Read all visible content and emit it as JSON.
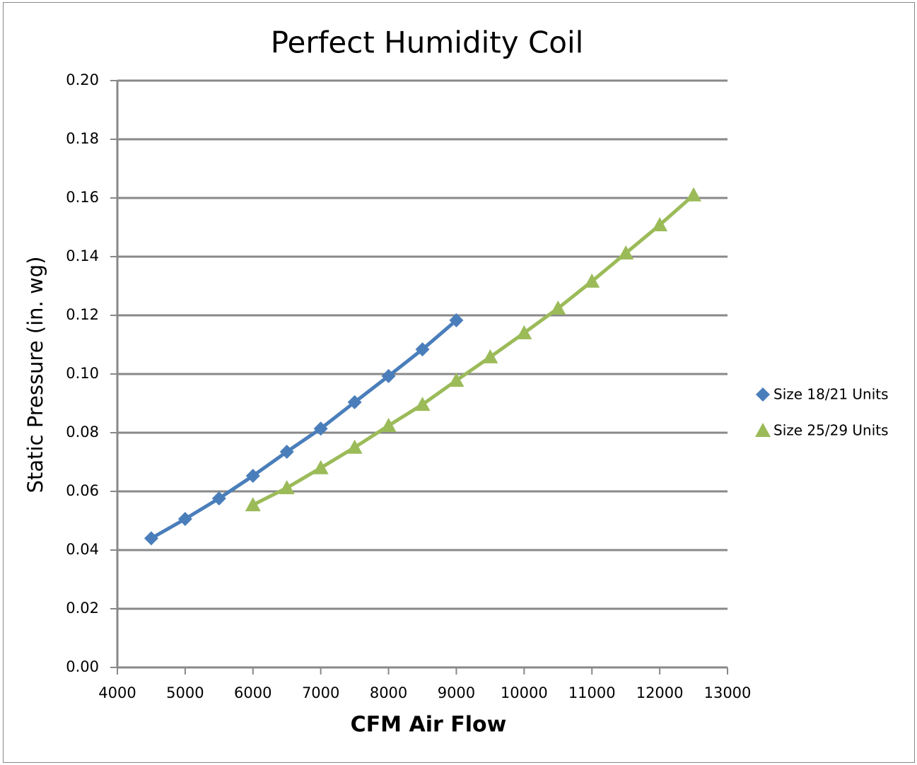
{
  "chart_data": {
    "type": "line",
    "title": "Perfect Humidity Coil",
    "x_label": "CFM Air Flow",
    "y_label": "Static Pressure (in. wg)",
    "xlim": [
      4000,
      13000
    ],
    "xticks": [
      4000,
      5000,
      6000,
      7000,
      8000,
      9000,
      10000,
      11000,
      12000,
      13000
    ],
    "ylim": [
      0,
      0.2
    ],
    "yticks": [
      {
        "value": 0,
        "label": "0.00"
      },
      {
        "value": 0.02,
        "label": "0.02"
      },
      {
        "value": 0.04,
        "label": "0.04"
      },
      {
        "value": 0.06,
        "label": "0.06"
      },
      {
        "value": 0.08,
        "label": "0.08"
      },
      {
        "value": 0.1,
        "label": "0.10"
      },
      {
        "value": 0.12,
        "label": "0.12"
      },
      {
        "value": 0.14,
        "label": "0.14"
      },
      {
        "value": 0.16,
        "label": "0.16"
      },
      {
        "value": 0.18,
        "label": "0.18"
      },
      {
        "value": 0.2,
        "label": "0.20"
      }
    ],
    "grid": true,
    "legend": "right",
    "series": [
      {
        "name": "Size 18/21 Units",
        "color": "#4a7ebb",
        "marker": "diamond",
        "x": [
          4500,
          5000,
          5500,
          6000,
          6500,
          7000,
          7500,
          8000,
          8500,
          9000
        ],
        "values": [
          0.044,
          0.0506,
          0.0576,
          0.0653,
          0.0735,
          0.0814,
          0.0904,
          0.0993,
          0.1084,
          0.1183
        ]
      },
      {
        "name": "Size 25/29 Units",
        "color": "#9bbb59",
        "marker": "triangle",
        "x": [
          6000,
          6500,
          7000,
          7500,
          8000,
          8500,
          9000,
          9500,
          10000,
          10500,
          11000,
          11500,
          12000,
          12500
        ],
        "values": [
          0.0554,
          0.0612,
          0.068,
          0.075,
          0.0824,
          0.0896,
          0.0978,
          0.1058,
          0.114,
          0.1224,
          0.1316,
          0.1412,
          0.1508,
          0.161
        ]
      }
    ]
  }
}
